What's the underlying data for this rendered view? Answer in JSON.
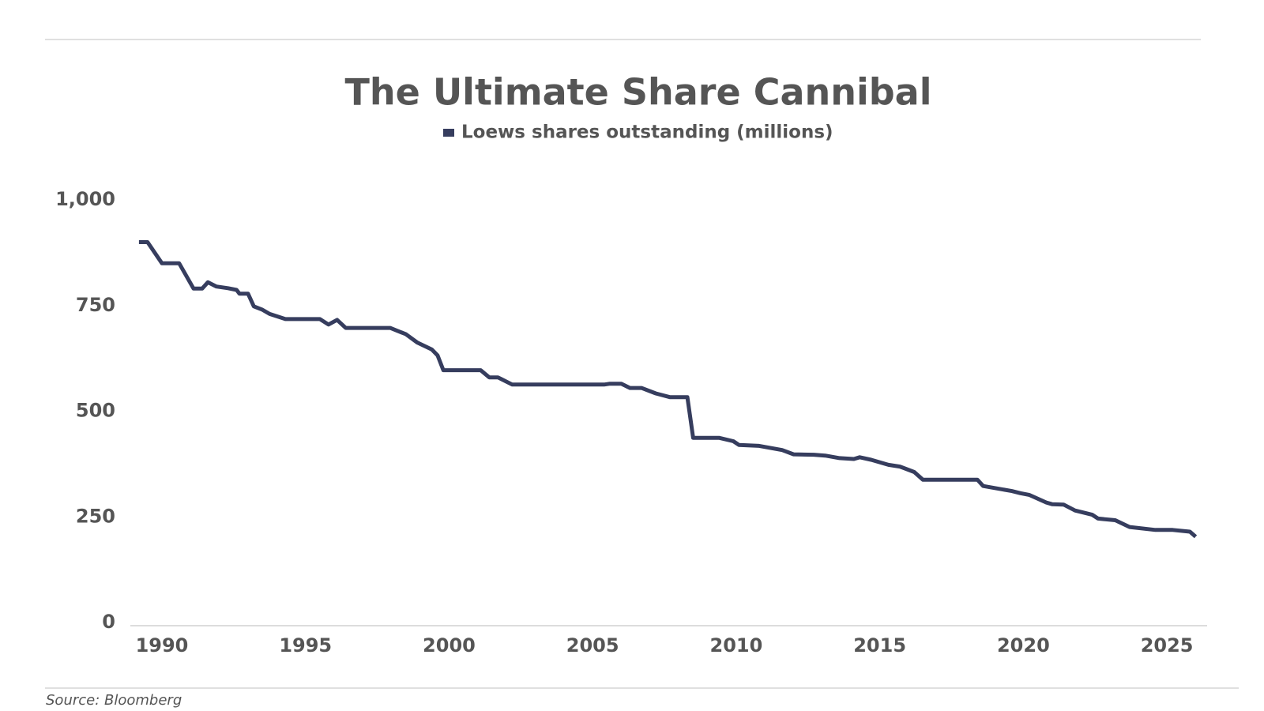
{
  "chart_data": {
    "type": "line",
    "title": "The Ultimate Share Cannibal",
    "source": "Source: Bloomberg",
    "x": [
      1989.2,
      1989.5,
      1990.0,
      1990.6,
      1991.1,
      1991.4,
      1991.6,
      1991.9,
      1992.3,
      1992.6,
      1992.7,
      1993.0,
      1993.2,
      1993.5,
      1993.75,
      1994.3,
      1995.5,
      1995.8,
      1996.1,
      1996.4,
      1997.95,
      1998.5,
      1998.9,
      1999.4,
      1999.6,
      1999.8,
      2001.1,
      2001.4,
      2001.7,
      2002.2,
      2005.4,
      2005.6,
      2006.0,
      2006.3,
      2006.7,
      2007.2,
      2007.7,
      2008.3,
      2008.5,
      2009.4,
      2009.9,
      2010.1,
      2010.8,
      2011.6,
      2012.0,
      2012.7,
      2013.1,
      2013.6,
      2014.1,
      2014.3,
      2014.7,
      2015.3,
      2015.7,
      2016.2,
      2016.5,
      2018.4,
      2018.6,
      2019.6,
      2019.9,
      2020.2,
      2020.8,
      2021.0,
      2021.4,
      2021.8,
      2022.4,
      2022.6,
      2023.2,
      2023.7,
      2024.6,
      2025.2,
      2025.8,
      2026.0
    ],
    "series": [
      {
        "name": "Loews shares outstanding (millions)",
        "color": "#363d5e",
        "values": [
          900,
          900,
          850,
          850,
          790,
          790,
          805,
          795,
          791,
          787,
          778,
          778,
          748,
          740,
          730,
          718,
          718,
          705,
          716,
          697,
          697,
          682,
          662,
          646,
          632,
          597,
          597,
          580,
          580,
          563,
          563,
          565,
          565,
          555,
          555,
          542,
          533,
          533,
          437,
          437,
          429,
          420,
          418,
          408,
          398,
          397,
          395,
          389,
          387,
          391,
          385,
          373,
          369,
          356,
          338,
          338,
          323,
          311,
          306,
          302,
          284,
          280,
          279,
          265,
          255,
          246,
          242,
          226,
          219,
          219,
          215,
          203
        ]
      }
    ],
    "xlim": [
      1988.9,
      2026.4
    ],
    "xticks": [
      1990,
      1995,
      2000,
      2005,
      2010,
      2015,
      2020,
      2025
    ],
    "ylim": [
      0,
      1000
    ],
    "yticks": [
      0,
      250,
      500,
      750,
      {
        "value": 1000,
        "label": "1,000"
      }
    ],
    "grid": false
  }
}
